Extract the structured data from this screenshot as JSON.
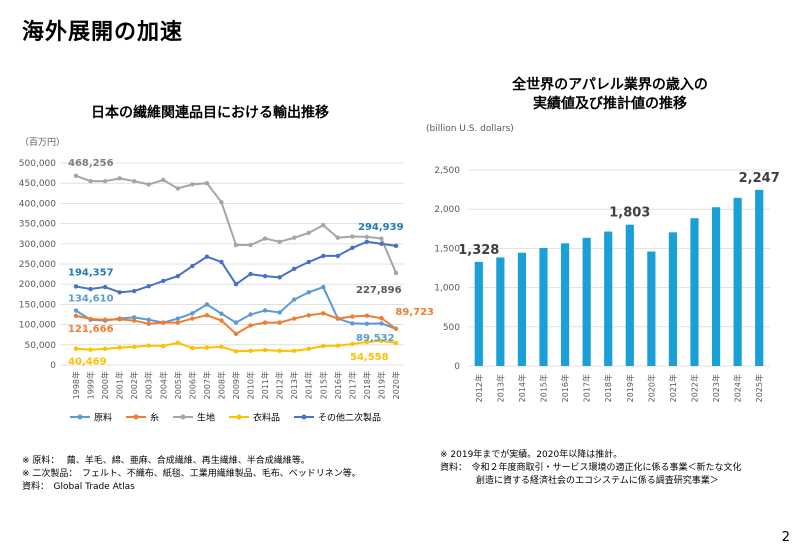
{
  "page": {
    "title": "海外展開の加速",
    "page_number": "2"
  },
  "left": {
    "title": "日本の繊維関連品目における輸出推移",
    "notes": [
      "※ 原料：　 繭、羊毛、綿、亜麻、合成繊維、再生繊維、半合成繊維等。",
      "※ 二次製品：　フェルト、不織布、紙毯、工業用繊維製品、毛布、ベッドリネン等。",
      "資料：　Global Trade Atlas"
    ]
  },
  "right": {
    "title_line1": "全世界のアパレル業界の歳入の",
    "title_line2": "実績値及び推計値の推移",
    "notes": [
      "※ 2019年までが実績。2020年以降は推計。",
      "資料：　令和２年度商取引・サービス環境の適正化に係る事業＜新たな文化",
      "　　　　創造に資する経済社会のエコシステムに係る調査研究事業＞"
    ]
  },
  "chart_data": [
    {
      "type": "line",
      "title": "日本の繊維関連品目における輸出推移",
      "ylabel": "（百万円）",
      "ylim": [
        0,
        500000
      ],
      "yticks": [
        0,
        50000,
        100000,
        150000,
        200000,
        250000,
        300000,
        350000,
        400000,
        450000,
        500000
      ],
      "ytick_labels": [
        "0",
        "50,000",
        "100,000",
        "150,000",
        "200,000",
        "250,000",
        "300,000",
        "350,000",
        "400,000",
        "450,000",
        "500,000"
      ],
      "x": [
        "1998年",
        "1999年",
        "2000年",
        "2001年",
        "2002年",
        "2003年",
        "2004年",
        "2005年",
        "2006年",
        "2007年",
        "2008年",
        "2009年",
        "2010年",
        "2011年",
        "2012年",
        "2013年",
        "2014年",
        "2015年",
        "2016年",
        "2017年",
        "2018年",
        "2019年",
        "2020年"
      ],
      "legend_position": "bottom",
      "grid": true,
      "series": [
        {
          "name": "原料",
          "color": "#5b9bd5",
          "values": [
            134610,
            112000,
            110000,
            115000,
            118000,
            112000,
            105000,
            115000,
            128000,
            150000,
            127000,
            105000,
            125000,
            135000,
            130000,
            162000,
            180000,
            193000,
            115000,
            103000,
            102000,
            103000,
            89532
          ],
          "labels": [
            {
              "index": 0,
              "text": "134,610",
              "color": "#5b9bd5"
            },
            {
              "index": 22,
              "text": "89,532",
              "color": "#5b9bd5"
            }
          ]
        },
        {
          "name": "糸",
          "color": "#ed7d31",
          "values": [
            121666,
            114000,
            112000,
            113000,
            110000,
            102000,
            105000,
            105000,
            115000,
            123000,
            110000,
            77000,
            98000,
            105000,
            105000,
            115000,
            123000,
            128000,
            115000,
            120000,
            122000,
            116000,
            89723
          ],
          "labels": [
            {
              "index": 0,
              "text": "121,666",
              "color": "#ed7d31"
            },
            {
              "index": 22,
              "text": "89,723",
              "color": "#ed7d31"
            }
          ]
        },
        {
          "name": "生地",
          "color": "#a5a5a5",
          "values": [
            468256,
            455000,
            455000,
            462000,
            455000,
            447000,
            458000,
            437000,
            447000,
            450000,
            403000,
            297000,
            297000,
            313000,
            305000,
            315000,
            327000,
            346000,
            315000,
            318000,
            317000,
            313000,
            227896
          ],
          "labels": [
            {
              "index": 0,
              "text": "468,256",
              "color": "#7f7f7f"
            },
            {
              "index": 22,
              "text": "227,896",
              "color": "#595959"
            }
          ]
        },
        {
          "name": "衣料品",
          "color": "#ffc000",
          "values": [
            40469,
            38000,
            40000,
            43000,
            45000,
            48000,
            47000,
            55000,
            42000,
            43000,
            45000,
            34000,
            35000,
            37000,
            35000,
            35000,
            40000,
            47000,
            48000,
            52000,
            57000,
            60000,
            54558
          ],
          "labels": [
            {
              "index": 0,
              "text": "40,469",
              "color": "#ffc000"
            },
            {
              "index": 22,
              "text": "54,558",
              "color": "#ffc000"
            }
          ]
        },
        {
          "name": "その他二次製品",
          "color": "#4472c4",
          "values": [
            194357,
            188000,
            193000,
            180000,
            183000,
            195000,
            208000,
            220000,
            245000,
            268000,
            255000,
            200000,
            225000,
            220000,
            217000,
            238000,
            255000,
            270000,
            270000,
            290000,
            305000,
            300000,
            294939
          ],
          "labels": [
            {
              "index": 0,
              "text": "194,357",
              "color": "#1f7bb8"
            },
            {
              "index": 22,
              "text": "294,939",
              "color": "#1f7bb8"
            }
          ]
        }
      ]
    },
    {
      "type": "bar",
      "title": "全世界のアパレル業界の歳入の実績値及び推計値の推移",
      "ylabel": "(billion U.S. dollars)",
      "ylim": [
        0,
        2500
      ],
      "yticks": [
        0,
        500,
        1000,
        1500,
        2000,
        2500
      ],
      "ytick_labels": [
        "0",
        "500",
        "1,000",
        "1,500",
        "2,000",
        "2,500"
      ],
      "categories": [
        "2012年",
        "2013年",
        "2014年",
        "2015年",
        "2016年",
        "2017年",
        "2018年",
        "2019年",
        "2020年",
        "2021年",
        "2022年",
        "2023年",
        "2024年",
        "2025年"
      ],
      "values": [
        1328,
        1385,
        1445,
        1505,
        1565,
        1635,
        1715,
        1803,
        1460,
        1705,
        1885,
        2025,
        2145,
        2247
      ],
      "bar_color": "#1aa0d6",
      "grid": true,
      "labels": [
        {
          "index": 0,
          "text": "1,328"
        },
        {
          "index": 7,
          "text": "1,803"
        },
        {
          "index": 13,
          "text": "2,247"
        }
      ]
    }
  ]
}
